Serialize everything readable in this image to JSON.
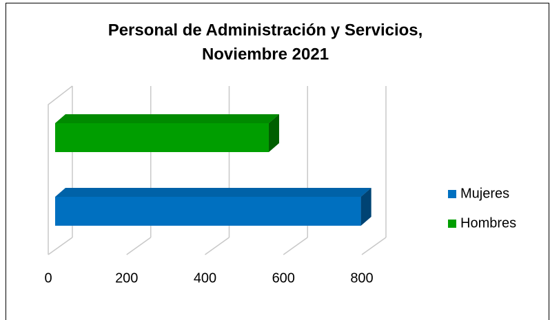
{
  "chart_data": {
    "type": "bar3d",
    "orientation": "horizontal",
    "title": [
      "Personal de Administración y Servicios,",
      "Noviembre 2021"
    ],
    "categories": [
      "Mujeres",
      "Hombres"
    ],
    "values": [
      780,
      545
    ],
    "colors": [
      "#0070c0",
      "#009e00"
    ],
    "xlim": [
      0,
      800
    ],
    "xticks": [
      0,
      200,
      400,
      600,
      800
    ],
    "grid": true,
    "legend": "right"
  }
}
